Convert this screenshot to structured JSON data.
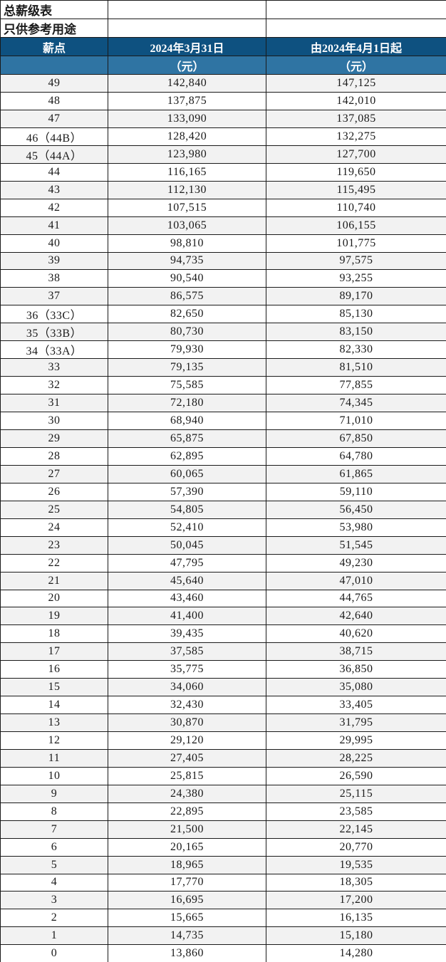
{
  "page": {
    "title": "总薪级表",
    "subtitle": "只供参考用途"
  },
  "colors": {
    "header_dark": "#0E5180",
    "header_light": "#2F74A3",
    "alt_row": "#F2F2F2",
    "border": "#1a1a1a",
    "text": "#1a1a1a"
  },
  "table": {
    "header": {
      "pay_point": "薪点",
      "before_date": "2024年3月31日",
      "after_date": "由2024年4月1日起",
      "unit_before": "（元）",
      "unit_after": "（元）"
    },
    "rows": [
      {
        "point": "49",
        "before": "142,840",
        "after": "147,125"
      },
      {
        "point": "48",
        "before": "137,875",
        "after": "142,010"
      },
      {
        "point": "47",
        "before": "133,090",
        "after": "137,085"
      },
      {
        "point": "46（44B）",
        "before": "128,420",
        "after": "132,275"
      },
      {
        "point": "45（44A）",
        "before": "123,980",
        "after": "127,700"
      },
      {
        "point": "44",
        "before": "116,165",
        "after": "119,650"
      },
      {
        "point": "43",
        "before": "112,130",
        "after": "115,495"
      },
      {
        "point": "42",
        "before": "107,515",
        "after": "110,740"
      },
      {
        "point": "41",
        "before": "103,065",
        "after": "106,155"
      },
      {
        "point": "40",
        "before": "98,810",
        "after": "101,775"
      },
      {
        "point": "39",
        "before": "94,735",
        "after": "97,575"
      },
      {
        "point": "38",
        "before": "90,540",
        "after": "93,255"
      },
      {
        "point": "37",
        "before": "86,575",
        "after": "89,170"
      },
      {
        "point": "36（33C）",
        "before": "82,650",
        "after": "85,130"
      },
      {
        "point": "35（33B）",
        "before": "80,730",
        "after": "83,150"
      },
      {
        "point": "34（33A）",
        "before": "79,930",
        "after": "82,330"
      },
      {
        "point": "33",
        "before": "79,135",
        "after": "81,510"
      },
      {
        "point": "32",
        "before": "75,585",
        "after": "77,855"
      },
      {
        "point": "31",
        "before": "72,180",
        "after": "74,345"
      },
      {
        "point": "30",
        "before": "68,940",
        "after": "71,010"
      },
      {
        "point": "29",
        "before": "65,875",
        "after": "67,850"
      },
      {
        "point": "28",
        "before": "62,895",
        "after": "64,780"
      },
      {
        "point": "27",
        "before": "60,065",
        "after": "61,865"
      },
      {
        "point": "26",
        "before": "57,390",
        "after": "59,110"
      },
      {
        "point": "25",
        "before": "54,805",
        "after": "56,450"
      },
      {
        "point": "24",
        "before": "52,410",
        "after": "53,980"
      },
      {
        "point": "23",
        "before": "50,045",
        "after": "51,545"
      },
      {
        "point": "22",
        "before": "47,795",
        "after": "49,230"
      },
      {
        "point": "21",
        "before": "45,640",
        "after": "47,010"
      },
      {
        "point": "20",
        "before": "43,460",
        "after": "44,765"
      },
      {
        "point": "19",
        "before": "41,400",
        "after": "42,640"
      },
      {
        "point": "18",
        "before": "39,435",
        "after": "40,620"
      },
      {
        "point": "17",
        "before": "37,585",
        "after": "38,715"
      },
      {
        "point": "16",
        "before": "35,775",
        "after": "36,850"
      },
      {
        "point": "15",
        "before": "34,060",
        "after": "35,080"
      },
      {
        "point": "14",
        "before": "32,430",
        "after": "33,405"
      },
      {
        "point": "13",
        "before": "30,870",
        "after": "31,795"
      },
      {
        "point": "12",
        "before": "29,120",
        "after": "29,995"
      },
      {
        "point": "11",
        "before": "27,405",
        "after": "28,225"
      },
      {
        "point": "10",
        "before": "25,815",
        "after": "26,590"
      },
      {
        "point": "9",
        "before": "24,380",
        "after": "25,115"
      },
      {
        "point": "8",
        "before": "22,895",
        "after": "23,585"
      },
      {
        "point": "7",
        "before": "21,500",
        "after": "22,145"
      },
      {
        "point": "6",
        "before": "20,165",
        "after": "20,770"
      },
      {
        "point": "5",
        "before": "18,965",
        "after": "19,535"
      },
      {
        "point": "4",
        "before": "17,770",
        "after": "18,305"
      },
      {
        "point": "3",
        "before": "16,695",
        "after": "17,200"
      },
      {
        "point": "2",
        "before": "15,665",
        "after": "16,135"
      },
      {
        "point": "1",
        "before": "14,735",
        "after": "15,180"
      },
      {
        "point": "0",
        "before": "13,860",
        "after": "14,280"
      }
    ]
  }
}
